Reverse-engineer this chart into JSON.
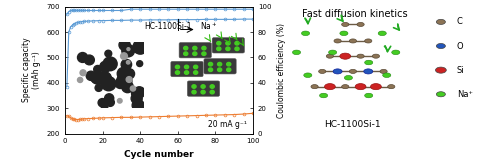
{
  "left_panel": {
    "title": "HC-1100Si-1",
    "xlabel": "Cycle number",
    "ylabel_left": "Specific capacity\n(mAh g⁻¹)",
    "ylabel_right": "Coulombic efficiency (%)",
    "annotation": "20 mA g⁻¹",
    "xlim": [
      0,
      100
    ],
    "ylim_left": [
      200,
      700
    ],
    "ylim_right": [
      0,
      100
    ],
    "yticks_left": [
      200,
      300,
      400,
      500,
      600,
      700
    ],
    "yticks_right": [
      0,
      20,
      40,
      60,
      80,
      100
    ],
    "xticks": [
      0,
      20,
      40,
      60,
      80,
      100
    ],
    "charge_color": "#5B9BD5",
    "discharge_color": "#ED7D31",
    "charge_data_x": [
      1,
      2,
      3,
      4,
      5,
      6,
      7,
      8,
      9,
      10,
      12,
      15,
      18,
      20,
      25,
      30,
      35,
      40,
      45,
      50,
      55,
      60,
      65,
      70,
      75,
      80,
      85,
      90,
      95,
      100
    ],
    "charge_data_y": [
      385,
      600,
      620,
      628,
      633,
      636,
      638,
      640,
      641,
      642,
      643,
      644,
      645,
      645,
      646,
      646,
      647,
      647,
      648,
      648,
      648,
      649,
      649,
      649,
      650,
      650,
      650,
      650,
      651,
      651
    ],
    "discharge_data_x": [
      1,
      2,
      3,
      4,
      5,
      6,
      7,
      8,
      9,
      10,
      12,
      15,
      18,
      20,
      25,
      30,
      35,
      40,
      45,
      50,
      55,
      60,
      65,
      70,
      75,
      80,
      85,
      90,
      95,
      100
    ],
    "discharge_data_y": [
      270,
      268,
      262,
      258,
      256,
      255,
      255,
      256,
      257,
      258,
      259,
      260,
      261,
      262,
      263,
      264,
      264,
      265,
      266,
      267,
      268,
      269,
      270,
      271,
      272,
      273,
      274,
      275,
      277,
      280
    ],
    "ce_data_x": [
      1,
      2,
      3,
      4,
      5,
      6,
      7,
      8,
      9,
      10,
      12,
      15,
      18,
      20,
      25,
      30,
      35,
      40,
      45,
      50,
      55,
      60,
      65,
      70,
      75,
      80,
      85,
      90,
      95,
      100
    ],
    "ce_data_y": [
      94,
      96,
      97,
      97,
      97,
      97,
      97,
      97,
      97,
      97,
      97,
      97,
      97,
      97,
      97,
      97,
      98,
      98,
      98,
      98,
      98,
      98,
      98,
      98,
      98,
      98,
      98,
      98,
      98,
      98
    ]
  },
  "right_panel": {
    "title": "Fast diffusion kinetics",
    "subtitle": "HC-1100Si-1",
    "c_color": "#8B7355",
    "o_color": "#2255BB",
    "si_color": "#CC2222",
    "na_color": "#44CC22",
    "bond_color": "#6B5B45",
    "squiggle_color": "#22AA22",
    "legend_items": [
      {
        "label": "C",
        "color": "#8B7355"
      },
      {
        "label": "O",
        "color": "#2255BB"
      },
      {
        "label": "Si",
        "color": "#CC2222"
      },
      {
        "label": "Na⁺",
        "color": "#44CC22"
      }
    ]
  },
  "bg_color": "#FFFFFF"
}
